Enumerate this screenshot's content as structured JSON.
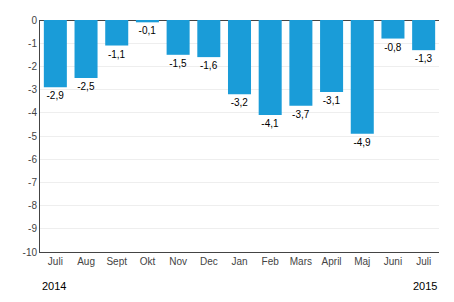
{
  "chart_data": {
    "type": "bar",
    "categories": [
      "Juli",
      "Aug",
      "Sept",
      "Okt",
      "Nov",
      "Dec",
      "Jan",
      "Feb",
      "Mars",
      "April",
      "Maj",
      "Juni",
      "Juli"
    ],
    "values": [
      -2.9,
      -2.5,
      -1.1,
      -0.1,
      -1.5,
      -1.6,
      -3.2,
      -4.1,
      -3.7,
      -3.1,
      -4.9,
      -0.8,
      -1.3
    ],
    "value_labels": [
      "-2,9",
      "-2,5",
      "-1,1",
      "-0,1",
      "-1,5",
      "-1,6",
      "-3,2",
      "-4,1",
      "-3,7",
      "-3,1",
      "-4,9",
      "-0,8",
      "-1,3"
    ],
    "data_labels": true,
    "color": "#1a9cd8",
    "ylim": [
      -10,
      0
    ],
    "yticks": [
      0,
      -1,
      -2,
      -3,
      -4,
      -5,
      -6,
      -7,
      -8,
      -9,
      -10
    ],
    "grid": true,
    "annotations": [
      "2014",
      "2015"
    ]
  }
}
